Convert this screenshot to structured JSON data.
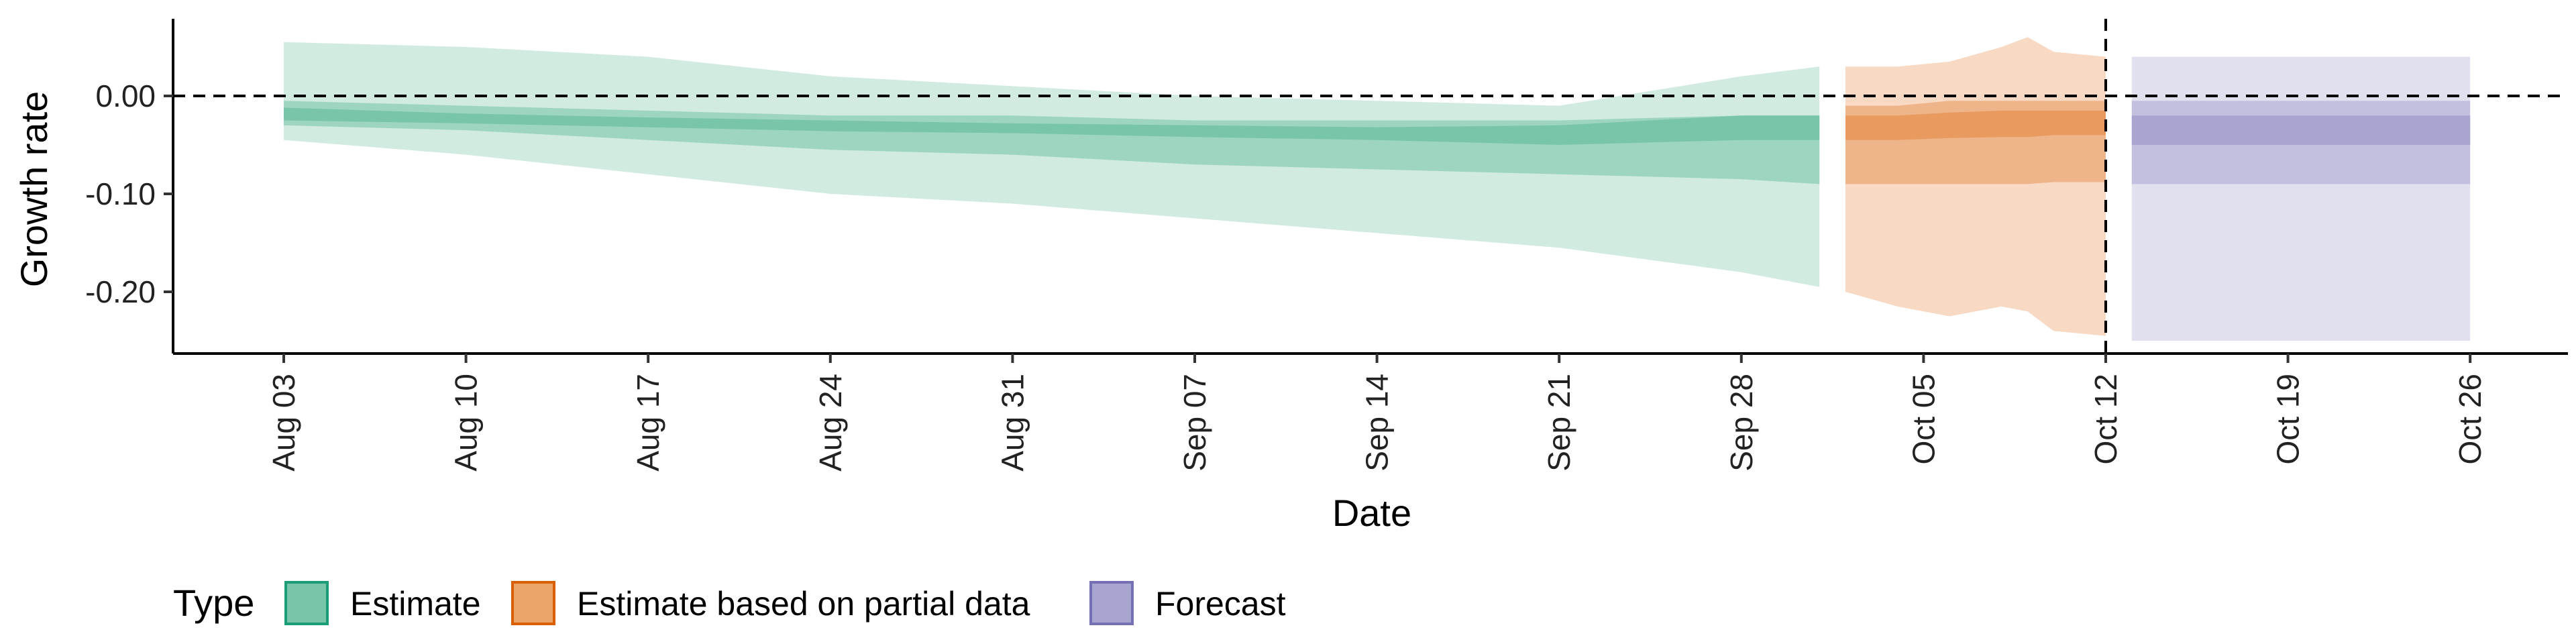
{
  "chart_data": {
    "type": "area",
    "xlabel": "Date",
    "ylabel": "Growth rate",
    "ylim": [
      -0.26,
      0.077
    ],
    "y_ticks": [
      {
        "value": 0.0,
        "label": "0.00"
      },
      {
        "value": -0.1,
        "label": "-0.10"
      },
      {
        "value": -0.2,
        "label": "-0.20"
      }
    ],
    "x_ticks": [
      {
        "day": 0,
        "label": "Aug 03"
      },
      {
        "day": 7,
        "label": "Aug 10"
      },
      {
        "day": 14,
        "label": "Aug 17"
      },
      {
        "day": 21,
        "label": "Aug 24"
      },
      {
        "day": 28,
        "label": "Aug 31"
      },
      {
        "day": 35,
        "label": "Sep 07"
      },
      {
        "day": 42,
        "label": "Sep 14"
      },
      {
        "day": 49,
        "label": "Sep 21"
      },
      {
        "day": 56,
        "label": "Sep 28"
      },
      {
        "day": 63,
        "label": "Oct 05"
      },
      {
        "day": 70,
        "label": "Oct 12"
      },
      {
        "day": 77,
        "label": "Oct 19"
      },
      {
        "day": 84,
        "label": "Oct 26"
      }
    ],
    "x_range_days": [
      -4.2,
      88.5
    ],
    "reference_lines": {
      "horizontal_y": 0.0,
      "vertical_day": 70
    },
    "legend": {
      "title": "Type",
      "position": "bottom-left",
      "entries": [
        {
          "label": "Estimate",
          "fill": "#78c5a9",
          "stroke": "#1b9e77"
        },
        {
          "label": "Estimate based on partial data",
          "fill": "#eba56b",
          "stroke": "#d95f02"
        },
        {
          "label": "Forecast",
          "fill": "#a8a5d0",
          "stroke": "#7570b3"
        }
      ]
    },
    "series": [
      {
        "name": "Estimate",
        "colors": {
          "outer": "#d1ebe1",
          "mid": "#9dd5c1",
          "inner": "#78c5a9"
        },
        "x": [
          0,
          7,
          14,
          21,
          28,
          35,
          42,
          49,
          56,
          59
        ],
        "outer_upper": [
          0.055,
          0.05,
          0.04,
          0.02,
          0.01,
          0.0,
          -0.005,
          -0.01,
          0.02,
          0.03
        ],
        "outer_lower": [
          -0.045,
          -0.06,
          -0.08,
          -0.1,
          -0.11,
          -0.125,
          -0.14,
          -0.155,
          -0.18,
          -0.195
        ],
        "mid_upper": [
          -0.005,
          -0.01,
          -0.015,
          -0.02,
          -0.02,
          -0.025,
          -0.025,
          -0.025,
          -0.02,
          -0.02
        ],
        "mid_lower": [
          -0.03,
          -0.035,
          -0.045,
          -0.055,
          -0.06,
          -0.07,
          -0.075,
          -0.08,
          -0.085,
          -0.09
        ],
        "inner_upper": [
          -0.012,
          -0.018,
          -0.022,
          -0.025,
          -0.028,
          -0.03,
          -0.032,
          -0.03,
          -0.02,
          -0.02
        ],
        "inner_lower": [
          -0.025,
          -0.028,
          -0.032,
          -0.036,
          -0.038,
          -0.042,
          -0.045,
          -0.05,
          -0.045,
          -0.045
        ]
      },
      {
        "name": "Estimate based on partial data",
        "colors": {
          "outer": "#f8d9c3",
          "mid": "#efb58a",
          "inner": "#e89a5f"
        },
        "x": [
          60,
          62,
          64,
          66,
          67,
          68,
          70
        ],
        "outer_upper": [
          0.03,
          0.03,
          0.035,
          0.05,
          0.06,
          0.045,
          0.04
        ],
        "outer_lower": [
          -0.2,
          -0.215,
          -0.225,
          -0.215,
          -0.22,
          -0.24,
          -0.245
        ],
        "mid_upper": [
          -0.01,
          -0.01,
          -0.005,
          -0.005,
          -0.005,
          -0.005,
          -0.005
        ],
        "mid_lower": [
          -0.09,
          -0.09,
          -0.09,
          -0.09,
          -0.09,
          -0.088,
          -0.088
        ],
        "inner_upper": [
          -0.02,
          -0.02,
          -0.017,
          -0.015,
          -0.015,
          -0.015,
          -0.015
        ],
        "inner_lower": [
          -0.045,
          -0.045,
          -0.043,
          -0.042,
          -0.042,
          -0.04,
          -0.04
        ]
      },
      {
        "name": "Forecast",
        "colors": {
          "outer": "#e1e0ee",
          "mid": "#c2c0de",
          "inner": "#a8a5d0"
        },
        "x": [
          71,
          84
        ],
        "outer_upper": [
          0.04,
          0.04
        ],
        "outer_lower": [
          -0.25,
          -0.25
        ],
        "mid_upper": [
          -0.005,
          -0.005
        ],
        "mid_lower": [
          -0.09,
          -0.09
        ],
        "inner_upper": [
          -0.02,
          -0.02
        ],
        "inner_lower": [
          -0.05,
          -0.05
        ]
      }
    ]
  }
}
